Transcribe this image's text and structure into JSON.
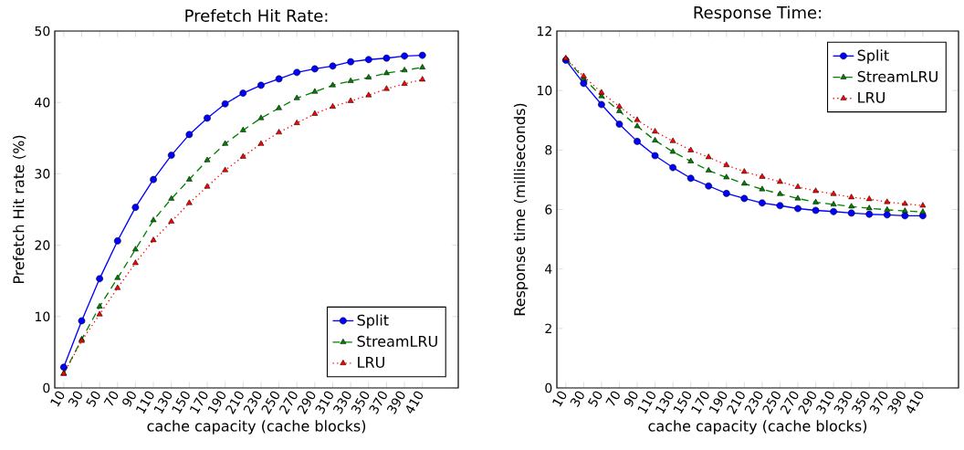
{
  "chart_data": [
    {
      "type": "line",
      "title": "Prefetch Hit Rate:",
      "xlabel": "cache capacity (cache blocks)",
      "ylabel": "Prefetch Hit rate (%)",
      "x": [
        10,
        30,
        50,
        70,
        90,
        110,
        130,
        150,
        170,
        190,
        210,
        230,
        250,
        270,
        290,
        310,
        330,
        350,
        370,
        390,
        410
      ],
      "xlim": [
        0,
        450
      ],
      "xticks": [
        10,
        30,
        50,
        70,
        90,
        110,
        130,
        150,
        170,
        190,
        210,
        230,
        250,
        270,
        290,
        310,
        330,
        350,
        370,
        390,
        410
      ],
      "ylim": [
        0,
        50
      ],
      "yticks": [
        0,
        10,
        20,
        30,
        40,
        50
      ],
      "grid": false,
      "legend": "bottom right",
      "series": [
        {
          "name": "Split",
          "color": "#0000ff",
          "marker": "circle",
          "line_style": "solid",
          "values": [
            2.9,
            9.4,
            15.3,
            20.6,
            25.3,
            29.2,
            32.6,
            35.5,
            37.8,
            39.8,
            41.3,
            42.4,
            43.3,
            44.2,
            44.7,
            45.1,
            45.7,
            46.0,
            46.2,
            46.5,
            46.6
          ]
        },
        {
          "name": "StreamLRU",
          "color": "#008000",
          "marker": "triangle",
          "line_style": "dashed",
          "values": [
            2.0,
            6.8,
            11.4,
            15.4,
            19.4,
            23.5,
            26.5,
            29.2,
            31.9,
            34.2,
            36.1,
            37.8,
            39.2,
            40.6,
            41.5,
            42.4,
            43.0,
            43.5,
            44.1,
            44.5,
            44.9
          ]
        },
        {
          "name": "LRU",
          "color": "#ff0000",
          "marker": "triangle",
          "line_style": "dotted",
          "values": [
            2.0,
            6.6,
            10.3,
            14.0,
            17.5,
            20.7,
            23.3,
            25.9,
            28.2,
            30.5,
            32.4,
            34.2,
            35.8,
            37.1,
            38.4,
            39.4,
            40.2,
            41.0,
            41.9,
            42.6,
            43.2
          ]
        }
      ]
    },
    {
      "type": "line",
      "title": "Response Time:",
      "xlabel": "cache capacity (cache blocks)",
      "ylabel": "Response time (milliseconds)",
      "x": [
        10,
        30,
        50,
        70,
        90,
        110,
        130,
        150,
        170,
        190,
        210,
        230,
        250,
        270,
        290,
        310,
        330,
        350,
        370,
        390,
        410
      ],
      "xlim": [
        0,
        450
      ],
      "xticks": [
        10,
        30,
        50,
        70,
        90,
        110,
        130,
        150,
        170,
        190,
        210,
        230,
        250,
        270,
        290,
        310,
        330,
        350,
        370,
        390,
        410
      ],
      "ylim": [
        0,
        12
      ],
      "yticks": [
        0,
        2,
        4,
        6,
        8,
        10,
        12
      ],
      "grid": false,
      "legend": "top right",
      "series": [
        {
          "name": "Split",
          "color": "#0000ff",
          "marker": "circle",
          "line_style": "solid",
          "values": [
            11.02,
            10.24,
            9.53,
            8.87,
            8.29,
            7.81,
            7.41,
            7.05,
            6.79,
            6.54,
            6.37,
            6.22,
            6.13,
            6.03,
            5.97,
            5.93,
            5.88,
            5.84,
            5.82,
            5.79,
            5.79
          ]
        },
        {
          "name": "StreamLRU",
          "color": "#008000",
          "marker": "triangle",
          "line_style": "dashed",
          "values": [
            11.07,
            10.41,
            9.81,
            9.31,
            8.8,
            8.32,
            7.94,
            7.62,
            7.31,
            7.08,
            6.87,
            6.68,
            6.52,
            6.37,
            6.24,
            6.17,
            6.1,
            6.04,
            5.99,
            5.95,
            5.92
          ]
        },
        {
          "name": "LRU",
          "color": "#ff0000",
          "marker": "triangle",
          "line_style": "dotted",
          "values": [
            11.08,
            10.48,
            9.93,
            9.46,
            9.01,
            8.62,
            8.3,
            7.99,
            7.76,
            7.49,
            7.27,
            7.1,
            6.93,
            6.76,
            6.62,
            6.52,
            6.41,
            6.35,
            6.25,
            6.19,
            6.13
          ]
        }
      ]
    }
  ]
}
